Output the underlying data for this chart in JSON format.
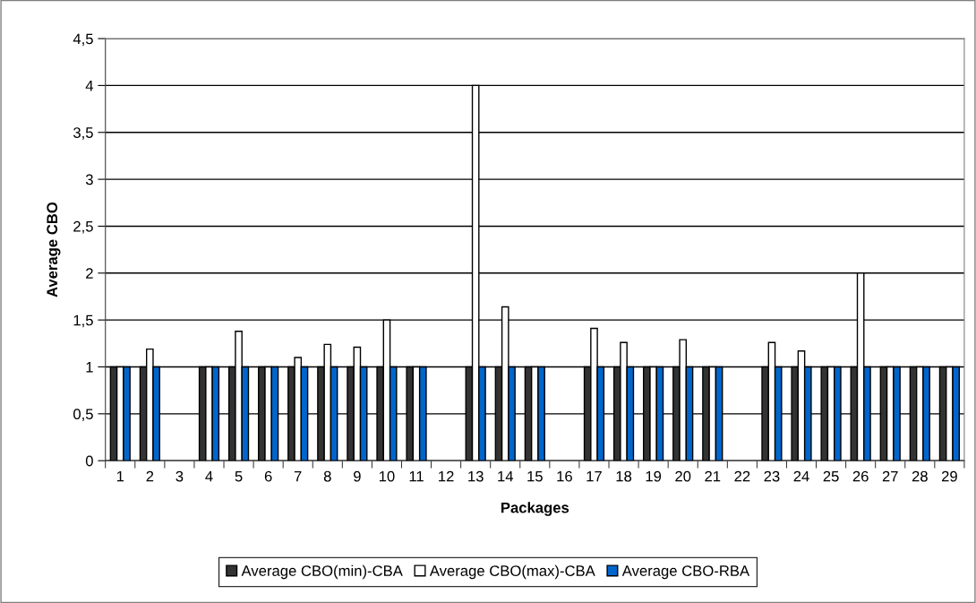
{
  "chart_data": {
    "type": "bar",
    "xlabel": "Packages",
    "ylabel": "Average CBO",
    "categories": [
      "1",
      "2",
      "3",
      "4",
      "5",
      "6",
      "7",
      "8",
      "9",
      "10",
      "11",
      "12",
      "13",
      "14",
      "15",
      "16",
      "17",
      "18",
      "19",
      "20",
      "21",
      "22",
      "23",
      "24",
      "25",
      "26",
      "27",
      "28",
      "29"
    ],
    "series": [
      {
        "name": "Average CBO(min)-CBA",
        "color": "#333333",
        "values": [
          1,
          1,
          null,
          1,
          1,
          1,
          1,
          1,
          1,
          1,
          1,
          null,
          1,
          1,
          1,
          null,
          1,
          1,
          1,
          1,
          1,
          null,
          1,
          1,
          1,
          1,
          1,
          1,
          1
        ]
      },
      {
        "name": "Average CBO(max)-CBA",
        "color": "#ffffff",
        "values": [
          1,
          1.19,
          null,
          1,
          1.38,
          1,
          1.1,
          1.24,
          1.21,
          1.5,
          1,
          null,
          4,
          1.64,
          1,
          null,
          1.41,
          1.26,
          1,
          1.29,
          1,
          null,
          1.26,
          1.17,
          1,
          2,
          1,
          1,
          1
        ]
      },
      {
        "name": "Average CBO-RBA",
        "color": "#0066cc",
        "values": [
          1,
          1,
          null,
          1,
          1,
          1,
          1,
          1,
          1,
          1,
          1,
          null,
          1,
          1,
          1,
          null,
          1,
          1,
          1,
          1,
          1,
          null,
          1,
          1,
          1,
          1,
          1,
          1,
          1
        ]
      }
    ],
    "ylim": [
      0,
      4.5
    ],
    "yticks": [
      0,
      {
        "value": 0.5,
        "label": "0,5"
      },
      1,
      {
        "value": 1.5,
        "label": "1,5"
      },
      2,
      {
        "value": 2.5,
        "label": "2,5"
      },
      3,
      {
        "value": 3.5,
        "label": "3,5"
      },
      4,
      {
        "value": 4.5,
        "label": "4,5"
      }
    ],
    "grid": "y",
    "legend": "bottom"
  }
}
